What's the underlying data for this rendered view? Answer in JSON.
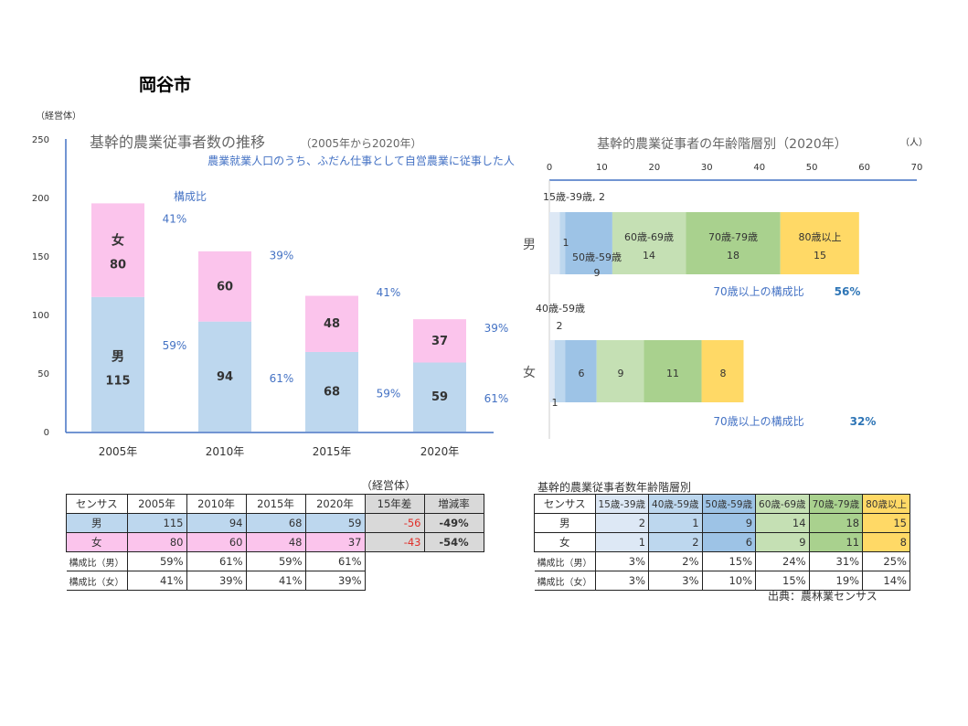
{
  "page_title": "岡谷市",
  "chart_data": [
    {
      "type": "bar",
      "stacked": true,
      "title": "基幹的農業従事者数の推移",
      "title_suffix": "（2005年から2020年）",
      "subtitle": "農業就業人口のうち、ふだん仕事として自営農業に従事した人",
      "ylabel": "（経営体）",
      "ylim": [
        0,
        250
      ],
      "yticks": [
        0,
        50,
        100,
        150,
        200,
        250
      ],
      "categories": [
        "2005年",
        "2010年",
        "2015年",
        "2020年"
      ],
      "legend_label": "構成比",
      "series": [
        {
          "name": "男",
          "values": [
            115,
            94,
            68,
            59
          ],
          "ratio": [
            "59%",
            "61%",
            "59%",
            "61%"
          ],
          "color": "#bdd7ee"
        },
        {
          "name": "女",
          "values": [
            80,
            60,
            48,
            37
          ],
          "ratio": [
            "41%",
            "39%",
            "41%",
            "39%"
          ],
          "color": "#fbc4ec"
        }
      ]
    },
    {
      "type": "bar",
      "orientation": "horizontal",
      "stacked": true,
      "title": "基幹的農業従事者の年齢階層別（2020年）",
      "unit": "（人）",
      "xlim": [
        0,
        70
      ],
      "xticks": [
        0,
        10,
        20,
        30,
        40,
        50,
        60,
        70
      ],
      "categories": [
        "男",
        "女"
      ],
      "series": [
        {
          "name": "15歳-39歳",
          "values": [
            2,
            1
          ],
          "color": "#dde8f5"
        },
        {
          "name": "40歳-59歳",
          "values": [
            1,
            2
          ],
          "color": "#bdd7ee"
        },
        {
          "name": "50歳-59歳",
          "values": [
            9,
            6
          ],
          "color": "#9dc3e6"
        },
        {
          "name": "60歳-69歳",
          "values": [
            14,
            9
          ],
          "color": "#c5e0b4"
        },
        {
          "name": "70歳-79歳",
          "values": [
            18,
            11
          ],
          "color": "#a9d18e"
        },
        {
          "name": "80歳以上",
          "values": [
            15,
            8
          ],
          "color": "#ffd966"
        }
      ],
      "annotations": [
        {
          "label": "70歳以上の構成比",
          "value": "56%"
        },
        {
          "label": "70歳以上の構成比",
          "value": "32%"
        }
      ],
      "data_labels": {
        "m0": "15歳-39歳, 2",
        "m1": "1",
        "m2a": "50歳-59歳",
        "m2b": "9",
        "m3a": "60歳-69歳",
        "m3b": "14",
        "m4a": "70歳-79歳",
        "m4b": "18",
        "m5a": "80歳以上",
        "m5b": "15",
        "f1a": "40歳-59歳",
        "f1b": "2",
        "f0": "1",
        "f2": "6",
        "f3": "9",
        "f4": "11",
        "f5": "8"
      }
    }
  ],
  "table1": {
    "unit": "（経営体）",
    "header": [
      "センサス",
      "2005年",
      "2010年",
      "2015年",
      "2020年",
      "15年差",
      "増減率"
    ],
    "rows": [
      [
        "男",
        "115",
        "94",
        "68",
        "59",
        "-56",
        "-49%"
      ],
      [
        "女",
        "80",
        "60",
        "48",
        "37",
        "-43",
        "-54%"
      ],
      [
        "構成比（男）",
        "59%",
        "61%",
        "59%",
        "61%"
      ],
      [
        "構成比（女）",
        "41%",
        "39%",
        "41%",
        "39%"
      ]
    ]
  },
  "table2": {
    "title": "基幹的農業従事者数年齢階層別",
    "header": [
      "センサス",
      "15歳-39歳",
      "40歳-59歳",
      "50歳-59歳",
      "60歳-69歳",
      "70歳-79歳",
      "80歳以上"
    ],
    "rows": [
      [
        "男",
        "2",
        "1",
        "9",
        "14",
        "18",
        "15"
      ],
      [
        "女",
        "1",
        "2",
        "6",
        "9",
        "11",
        "8"
      ],
      [
        "構成比（男）",
        "3%",
        "2%",
        "15%",
        "24%",
        "31%",
        "25%"
      ],
      [
        "構成比（女）",
        "3%",
        "3%",
        "10%",
        "15%",
        "19%",
        "14%"
      ]
    ]
  },
  "source": "出典：農林業センサス"
}
